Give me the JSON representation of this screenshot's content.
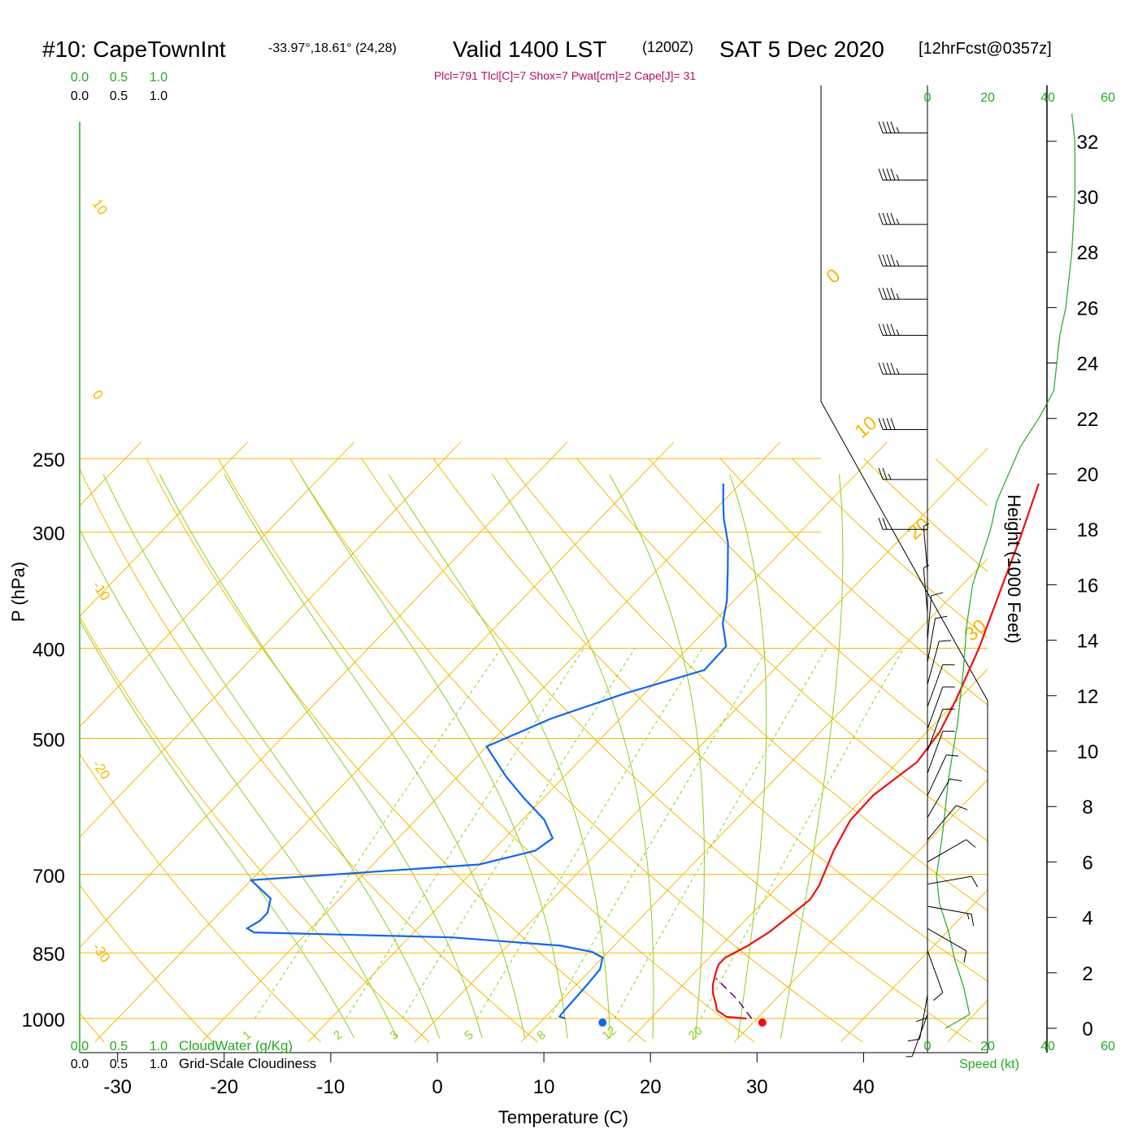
{
  "header": {
    "station": "#10: CapeTownInt",
    "location": "-33.97°,18.61° (24,28)",
    "valid": "Valid 1400 LST",
    "utc": "(1200Z)",
    "date": "SAT 5 Dec 2020",
    "forecast": "[12hrFcst@0357z]",
    "indices": "Plcl=791 Tlcl[C]=7 Shox=7 Pwat[cm]=2 Cape[J]= 31"
  },
  "colors": {
    "temperature": "#ee1111",
    "dewpoint": "#1166ee",
    "isotherm": "#f5b800",
    "dry_adiabat": "#f5b800",
    "moist_adiabat": "#8ccf1f",
    "mixing_ratio": "#8ccf1f",
    "parcel": "#660066",
    "wind_speed": "#22aa22",
    "barb": "#000000",
    "cloud": "#22aa22"
  },
  "chart_data": {
    "type": "line",
    "subtype": "skew-t log-p sounding",
    "xlabel": "Temperature (C)",
    "ylabel": "P (hPa)",
    "y2label": "Height (1000 Feet)",
    "x_ticks": [
      "-30",
      "-20",
      "-10",
      "0",
      "10",
      "20",
      "30",
      "40"
    ],
    "x_tick_values": [
      -30,
      -20,
      -10,
      0,
      10,
      20,
      30,
      40
    ],
    "y_ticks": [
      "250",
      "300",
      "400",
      "500",
      "700",
      "850",
      "1000"
    ],
    "y_tick_values": [
      250,
      300,
      400,
      500,
      700,
      850,
      1000
    ],
    "height_ticks": [
      "0",
      "2",
      "4",
      "6",
      "8",
      "10",
      "12",
      "14",
      "16",
      "18",
      "20",
      "22",
      "24",
      "26",
      "28",
      "30",
      "32"
    ],
    "height_tick_values": [
      0,
      2,
      4,
      6,
      8,
      10,
      12,
      14,
      16,
      18,
      20,
      22,
      24,
      26,
      28,
      30,
      32
    ],
    "yscale": "log",
    "isotherm_label_values": [
      30,
      20,
      10,
      0,
      -10,
      -20,
      -30
    ],
    "isotherm_labels": [
      "30",
      "20",
      "10",
      "0",
      "-10",
      "-20",
      "-30"
    ],
    "mixing_ratio_values": [
      1,
      2,
      3,
      5,
      8,
      12,
      20
    ],
    "mixing_ratio_labels": [
      "1",
      "2",
      "3",
      "5",
      "8",
      "12",
      "20"
    ],
    "series": [
      {
        "name": "temperature",
        "points": [
          [
            29.0,
            1000
          ],
          [
            27.0,
            996
          ],
          [
            25.5,
            980
          ],
          [
            24.6,
            960
          ],
          [
            23.6,
            940
          ],
          [
            22.8,
            920
          ],
          [
            21.9,
            890
          ],
          [
            21.5,
            875
          ],
          [
            21.5,
            860
          ],
          [
            22.5,
            836
          ],
          [
            23.3,
            808
          ],
          [
            23.8,
            775
          ],
          [
            24.2,
            745
          ],
          [
            23.8,
            720
          ],
          [
            22.0,
            660
          ],
          [
            20.8,
            612
          ],
          [
            20.7,
            575
          ],
          [
            21.8,
            530
          ],
          [
            21.2,
            492
          ],
          [
            19.8,
            454
          ],
          [
            17.3,
            400
          ],
          [
            14.3,
            350
          ],
          [
            11.3,
            306
          ],
          [
            8.0,
            266
          ]
        ]
      },
      {
        "name": "dewpoint",
        "points": [
          [
            12.0,
            1000
          ],
          [
            11.3,
            995
          ],
          [
            11.2,
            980
          ],
          [
            11.0,
            920
          ],
          [
            10.8,
            885
          ],
          [
            10.0,
            860
          ],
          [
            8.5,
            848
          ],
          [
            5.0,
            835
          ],
          [
            -6.0,
            818
          ],
          [
            -25.0,
            808
          ],
          [
            -26.0,
            800
          ],
          [
            -25.5,
            785
          ],
          [
            -25.5,
            770
          ],
          [
            -26.5,
            743
          ],
          [
            -30.0,
            710
          ],
          [
            -10.0,
            683
          ],
          [
            -6.0,
            660
          ],
          [
            -5.5,
            640
          ],
          [
            -8.0,
            611
          ],
          [
            -12.0,
            578
          ],
          [
            -15.5,
            549
          ],
          [
            -20.0,
            510
          ],
          [
            -16.5,
            476
          ],
          [
            -11.8,
            447
          ],
          [
            -6.5,
            422
          ],
          [
            -6.6,
            398
          ],
          [
            -9.0,
            376
          ],
          [
            -10.7,
            355
          ],
          [
            -13.3,
            330
          ],
          [
            -15.8,
            308
          ],
          [
            -18.4,
            290
          ],
          [
            -20.0,
            278
          ],
          [
            -21.6,
            266
          ]
        ]
      },
      {
        "name": "parcel",
        "points": [
          [
            29.5,
            1000
          ],
          [
            26.5,
            955
          ],
          [
            22.5,
            905
          ]
        ]
      }
    ],
    "surface_markers": [
      {
        "name": "surface-temperature",
        "t": 30.5,
        "p": 1000
      },
      {
        "name": "surface-dewpoint",
        "t": 15.5,
        "p": 1000
      }
    ],
    "wind_speed_profile": {
      "axis_ticks": [
        "0",
        "20",
        "40",
        "60"
      ],
      "axis_tick_values": [
        0,
        20,
        40,
        60
      ],
      "unit": "Speed (kt)",
      "points": [
        [
          6,
          0
        ],
        [
          14,
          0.5
        ],
        [
          12,
          1.5
        ],
        [
          9,
          2.5
        ],
        [
          7,
          3.5
        ],
        [
          4,
          4.5
        ],
        [
          3,
          5.5
        ],
        [
          5,
          7
        ],
        [
          7,
          9
        ],
        [
          10,
          11
        ],
        [
          12,
          13
        ],
        [
          13,
          14.5
        ],
        [
          15,
          16
        ],
        [
          18,
          17
        ],
        [
          21,
          18
        ],
        [
          23,
          19
        ],
        [
          27,
          20
        ],
        [
          31,
          21
        ],
        [
          37,
          22
        ],
        [
          42,
          23
        ],
        [
          43,
          24
        ],
        [
          44,
          25
        ],
        [
          46,
          26
        ],
        [
          48,
          28
        ],
        [
          49,
          30
        ],
        [
          49,
          32
        ],
        [
          48,
          33
        ]
      ]
    },
    "wind_barbs": [
      {
        "h": 0.5,
        "dir": 200,
        "spd": 5
      },
      {
        "h": 1.2,
        "dir": 190,
        "spd": 10
      },
      {
        "h": 2.0,
        "dir": 180,
        "spd": 12
      },
      {
        "h": 2.8,
        "dir": 160,
        "spd": 10
      },
      {
        "h": 3.6,
        "dir": 120,
        "spd": 10
      },
      {
        "h": 4.4,
        "dir": 100,
        "spd": 15
      },
      {
        "h": 5.2,
        "dir": 80,
        "spd": 10
      },
      {
        "h": 6.0,
        "dir": 60,
        "spd": 10
      },
      {
        "h": 6.8,
        "dir": 40,
        "spd": 10
      },
      {
        "h": 7.6,
        "dir": 30,
        "spd": 10
      },
      {
        "h": 8.4,
        "dir": 25,
        "spd": 10
      },
      {
        "h": 9.2,
        "dir": 20,
        "spd": 10
      },
      {
        "h": 10.0,
        "dir": 20,
        "spd": 10
      },
      {
        "h": 10.8,
        "dir": 20,
        "spd": 10
      },
      {
        "h": 11.6,
        "dir": 20,
        "spd": 10
      },
      {
        "h": 12.4,
        "dir": 15,
        "spd": 10
      },
      {
        "h": 13.2,
        "dir": 10,
        "spd": 10
      },
      {
        "h": 14.0,
        "dir": 5,
        "spd": 10
      },
      {
        "h": 15.0,
        "dir": 355,
        "spd": 5
      },
      {
        "h": 16.5,
        "dir": 355,
        "spd": 5
      },
      {
        "h": 18.0,
        "dir": 270,
        "spd": 20
      },
      {
        "h": 19.8,
        "dir": 270,
        "spd": 25
      },
      {
        "h": 21.6,
        "dir": 270,
        "spd": 40
      },
      {
        "h": 23.6,
        "dir": 270,
        "spd": 45
      },
      {
        "h": 25.0,
        "dir": 270,
        "spd": 45
      },
      {
        "h": 26.3,
        "dir": 270,
        "spd": 45
      },
      {
        "h": 27.5,
        "dir": 270,
        "spd": 45
      },
      {
        "h": 29.0,
        "dir": 270,
        "spd": 45
      },
      {
        "h": 30.6,
        "dir": 270,
        "spd": 45
      },
      {
        "h": 32.3,
        "dir": 270,
        "spd": 45
      }
    ],
    "cloud_axis": {
      "ticks": [
        "0.0",
        "0.5",
        "1.0"
      ],
      "tick_values": [
        0.0,
        0.5,
        1.0
      ],
      "cloud_water_label": "CloudWater (g/Kg)",
      "cloudiness_label": "Grid-Scale Cloudiness"
    }
  }
}
